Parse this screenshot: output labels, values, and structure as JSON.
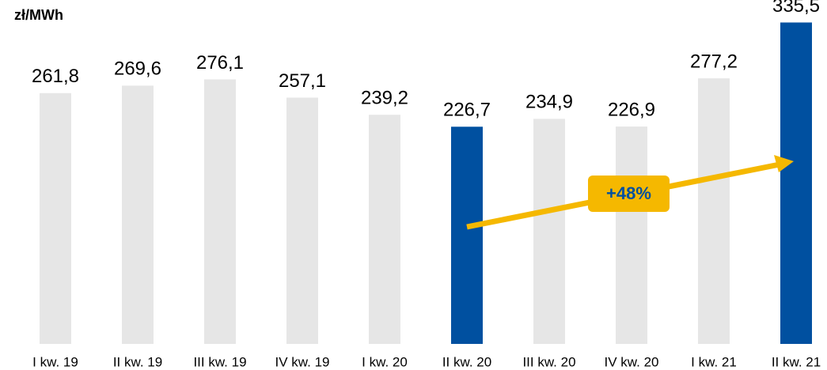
{
  "chart_data": {
    "type": "bar",
    "unit_label": "zł/MWh",
    "categories": [
      "I kw. 19",
      "II kw. 19",
      "III kw. 19",
      "IV kw. 19",
      "I kw. 20",
      "II kw. 20",
      "III kw. 20",
      "IV kw. 20",
      "I kw. 21",
      "II kw. 21"
    ],
    "values": [
      261.8,
      269.6,
      276.1,
      257.1,
      239.2,
      226.7,
      234.9,
      226.9,
      277.2,
      335.5
    ],
    "value_labels": [
      "261,8",
      "269,6",
      "276,1",
      "257,1",
      "239,2",
      "226,7",
      "234,9",
      "226,9",
      "277,2",
      "335,5"
    ],
    "colors": [
      "#e6e6e6",
      "#e6e6e6",
      "#e6e6e6",
      "#e6e6e6",
      "#e6e6e6",
      "#0050a0",
      "#e6e6e6",
      "#e6e6e6",
      "#e6e6e6",
      "#0050a0"
    ],
    "ylim": [
      0,
      340
    ],
    "annotation": "+48%"
  }
}
